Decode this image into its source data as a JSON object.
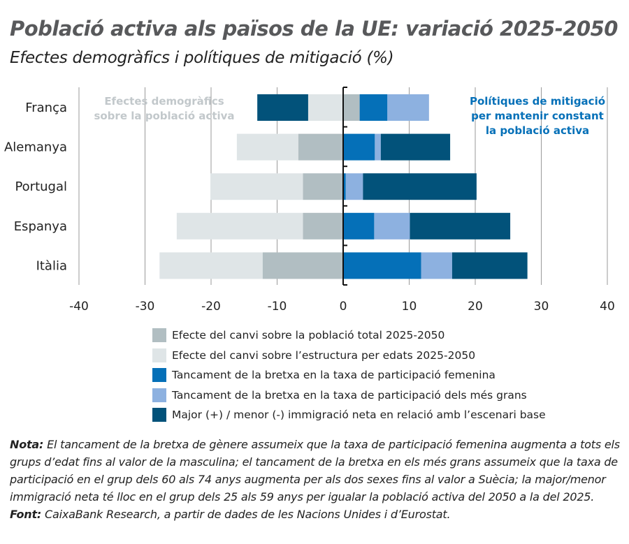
{
  "title": "Població activa als països de la UE: variació 2025-2050",
  "subtitle": "Efectes demogràfics i polítiques de mitigació (%)",
  "chart_data": {
    "type": "bar",
    "orientation": "horizontal-stacked-diverging",
    "categories": [
      "França",
      "Alemanya",
      "Portugal",
      "Espanya",
      "Itàlia"
    ],
    "xlim": [
      -40,
      40
    ],
    "xticks": [
      -40,
      -30,
      -20,
      -10,
      0,
      10,
      20,
      30,
      40
    ],
    "grid": true,
    "legend_position": "bottom",
    "annotations": {
      "left": [
        "Efectes demogràfics",
        "sobre la població activa"
      ],
      "right": [
        "Polítiques de mitigació",
        "per mantenir constant",
        "la població activa"
      ]
    },
    "series": [
      {
        "name": "Efecte del canvi sobre la població total 2025-2050",
        "color": "#b1bec2",
        "values": [
          2.5,
          -6.8,
          -6.1,
          -6.1,
          -12.2
        ]
      },
      {
        "name": "Efecte del canvi sobre l’estructura per edats 2025-2050",
        "color": "#dfe5e7",
        "values": [
          -5.3,
          -9.3,
          -14.0,
          -19.1,
          -15.6
        ]
      },
      {
        "name": "Tancament de la bretxa en la taxa de participació femenina",
        "color": "#0570b8",
        "values": [
          4.2,
          4.8,
          0.4,
          4.7,
          11.8
        ]
      },
      {
        "name": "Tancament de la bretxa en la taxa de participació dels més grans",
        "color": "#8db1e0",
        "values": [
          6.3,
          0.9,
          2.6,
          5.4,
          4.7
        ]
      },
      {
        "name": "Major (+) / menor (-) immigració neta en relació amb l’escenari base",
        "color": "#02527a",
        "values": [
          -7.7,
          10.5,
          17.2,
          15.2,
          11.4
        ]
      }
    ]
  },
  "note": {
    "label": "Nota:",
    "text": " El tancament de la bretxa de gènere assumeix que la taxa de participació femenina augmenta a tots els grups d’edat fins al valor de la masculina; el tancament de la bretxa en els més grans assumeix que la taxa de participació en el grup dels 60 als 74 anys augmenta per als dos sexes fins al valor a Suècia; la major/menor immigració neta té lloc en el grup dels 25 als 59 anys per igualar la població activa del 2050 a la del 2025."
  },
  "source": {
    "label": "Font:",
    "text": " CaixaBank Research, a partir de dades de les Nacions Unides i d’Eurostat."
  }
}
